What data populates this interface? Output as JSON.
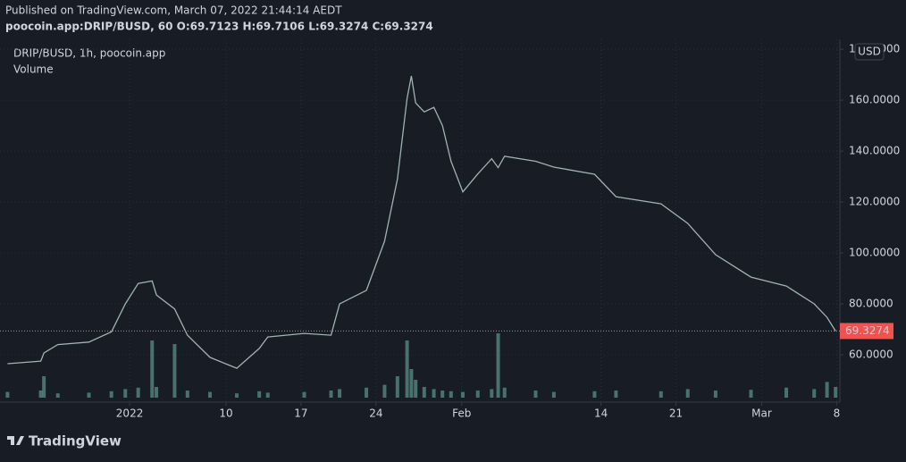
{
  "header": {
    "published": "Published on TradingView.com, March 07, 2022 21:44:14 AEDT",
    "symbol_line": "poocoin.app:DRIP/BUSD, 60 O:69.7123 H:69.7106 L:69.3274 C:69.3274"
  },
  "footer": {
    "brand": "TradingView"
  },
  "chart_data": {
    "type": "line",
    "currency": "USD",
    "x": [
      -10.4,
      -7.3,
      -7.0,
      -5.7,
      -2.8,
      -0.7,
      0.6,
      1.8,
      3.1,
      3.5,
      5.2,
      6.4,
      8.5,
      11,
      13.1,
      13.9,
      17.3,
      19.8,
      20.6,
      23.1,
      24.8,
      26,
      26.9,
      27.3,
      27.7,
      28.5,
      29.4,
      30.2,
      31,
      32.1,
      33.5,
      34.8,
      35.4,
      36,
      38.9,
      40.6,
      44.4,
      46.4,
      50.6,
      53.1,
      55.7,
      59,
      62.3,
      64.9,
      66.1,
      66.9
    ],
    "series": [
      {
        "name": "DRIP/BUSD, 1h, poocoin.app",
        "color": "#9fb3b0",
        "values": [
          56.5,
          57.5,
          60.7,
          64,
          65,
          69,
          80,
          88,
          89,
          83.5,
          78,
          67.7,
          59,
          54.7,
          62.5,
          67,
          68.4,
          67.7,
          80,
          85.3,
          104.6,
          129,
          160.7,
          169.5,
          158.9,
          155.4,
          157.2,
          150,
          136,
          124,
          131,
          137,
          133.5,
          138,
          136,
          133.7,
          130.9,
          122.1,
          119.3,
          111.6,
          99.3,
          90.5,
          87,
          80,
          74.7,
          69.3
        ]
      },
      {
        "name": "Volume",
        "color": "#5a8f88",
        "axis": "y2",
        "values": [
          8,
          10,
          30,
          6,
          7,
          9,
          12,
          14,
          80,
          15,
          75,
          10,
          8,
          6,
          9,
          7,
          8,
          10,
          12,
          14,
          18,
          30,
          80,
          40,
          25,
          15,
          12,
          10,
          9,
          8,
          10,
          12,
          90,
          14,
          10,
          8,
          9,
          10,
          9,
          12,
          10,
          11,
          14,
          12,
          22,
          15
        ]
      }
    ],
    "xlim": [
      -11.1,
      67.3
    ],
    "xticks": [
      {
        "value": 1,
        "label": "2022"
      },
      {
        "value": 10,
        "label": "10"
      },
      {
        "value": 17,
        "label": "17"
      },
      {
        "value": 24,
        "label": "24"
      },
      {
        "value": 32,
        "label": "Feb"
      },
      {
        "value": 45,
        "label": "14"
      },
      {
        "value": 52,
        "label": "21"
      },
      {
        "value": 60,
        "label": "Mar"
      },
      {
        "value": 67,
        "label": "8"
      }
    ],
    "ylim": [
      41.4,
      183.9
    ],
    "yticks": [
      {
        "value": 60,
        "label": "60.0000"
      },
      {
        "value": 80,
        "label": "80.0000"
      },
      {
        "value": 100,
        "label": "100.0000"
      },
      {
        "value": 120,
        "label": "120.0000"
      },
      {
        "value": 140,
        "label": "140.0000"
      },
      {
        "value": 160,
        "label": "160.0000"
      },
      {
        "value": 180,
        "label": "180.0000"
      }
    ],
    "y2lim": [
      0,
      100
    ],
    "last_price": 69.3274,
    "last_price_color": "#ef5350",
    "grid": true
  }
}
